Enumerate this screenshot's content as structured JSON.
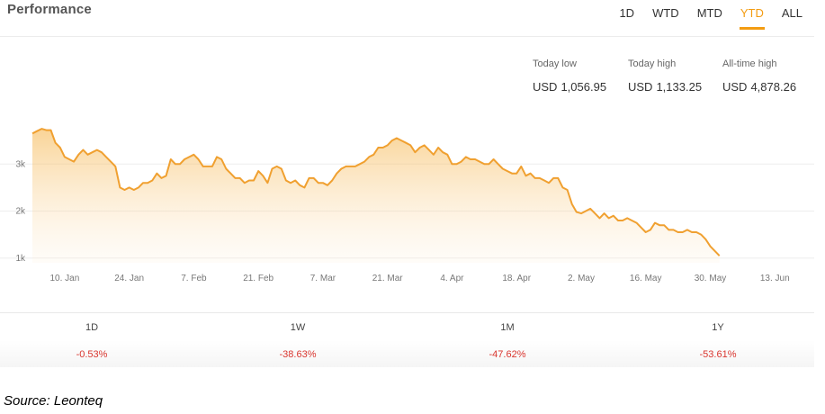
{
  "header": {
    "title": "Performance",
    "tabs": [
      "1D",
      "WTD",
      "MTD",
      "YTD",
      "ALL"
    ],
    "active_tab": "YTD"
  },
  "stats": [
    {
      "label": "Today low",
      "currency": "USD",
      "value": "1,056.95"
    },
    {
      "label": "Today high",
      "currency": "USD",
      "value": "1,133.25"
    },
    {
      "label": "All-time high",
      "currency": "USD",
      "value": "4,878.26"
    }
  ],
  "colors": {
    "accent": "#f39c12",
    "line": "#f0a030",
    "negative": "#d9362f"
  },
  "chart_data": {
    "type": "area",
    "title": "",
    "xlabel": "",
    "ylabel": "",
    "ylim": [
      900,
      4000
    ],
    "yticks": [
      1000,
      2000,
      3000
    ],
    "ytick_labels": [
      "1k",
      "2k",
      "3k"
    ],
    "xticks": [
      {
        "label": "10. Jan",
        "day": 10
      },
      {
        "label": "24. Jan",
        "day": 24
      },
      {
        "label": "7. Feb",
        "day": 38
      },
      {
        "label": "21. Feb",
        "day": 52
      },
      {
        "label": "7. Mar",
        "day": 66
      },
      {
        "label": "21. Mar",
        "day": 80
      },
      {
        "label": "4. Apr",
        "day": 94
      },
      {
        "label": "18. Apr",
        "day": 108
      },
      {
        "label": "2. May",
        "day": 122
      },
      {
        "label": "16. May",
        "day": 136
      },
      {
        "label": "30. May",
        "day": 150
      },
      {
        "label": "13. Jun",
        "day": 164
      }
    ],
    "xlim": [
      3,
      170
    ],
    "grid": true,
    "series": [
      {
        "values": [
          [
            3,
            3650
          ],
          [
            4,
            3700
          ],
          [
            5,
            3750
          ],
          [
            6,
            3720
          ],
          [
            7,
            3720
          ],
          [
            8,
            3450
          ],
          [
            9,
            3350
          ],
          [
            10,
            3150
          ],
          [
            11,
            3100
          ],
          [
            12,
            3050
          ],
          [
            13,
            3200
          ],
          [
            14,
            3300
          ],
          [
            15,
            3200
          ],
          [
            16,
            3250
          ],
          [
            17,
            3300
          ],
          [
            18,
            3250
          ],
          [
            19,
            3150
          ],
          [
            20,
            3050
          ],
          [
            21,
            2950
          ],
          [
            22,
            2500
          ],
          [
            23,
            2450
          ],
          [
            24,
            2500
          ],
          [
            25,
            2450
          ],
          [
            26,
            2500
          ],
          [
            27,
            2600
          ],
          [
            28,
            2600
          ],
          [
            29,
            2650
          ],
          [
            30,
            2800
          ],
          [
            31,
            2700
          ],
          [
            32,
            2750
          ],
          [
            33,
            3100
          ],
          [
            34,
            3000
          ],
          [
            35,
            3000
          ],
          [
            36,
            3100
          ],
          [
            37,
            3150
          ],
          [
            38,
            3200
          ],
          [
            39,
            3100
          ],
          [
            40,
            2950
          ],
          [
            41,
            2950
          ],
          [
            42,
            2950
          ],
          [
            43,
            3150
          ],
          [
            44,
            3100
          ],
          [
            45,
            2900
          ],
          [
            46,
            2800
          ],
          [
            47,
            2700
          ],
          [
            48,
            2700
          ],
          [
            49,
            2600
          ],
          [
            50,
            2650
          ],
          [
            51,
            2650
          ],
          [
            52,
            2850
          ],
          [
            53,
            2750
          ],
          [
            54,
            2600
          ],
          [
            55,
            2900
          ],
          [
            56,
            2950
          ],
          [
            57,
            2900
          ],
          [
            58,
            2650
          ],
          [
            59,
            2600
          ],
          [
            60,
            2650
          ],
          [
            61,
            2550
          ],
          [
            62,
            2500
          ],
          [
            63,
            2700
          ],
          [
            64,
            2700
          ],
          [
            65,
            2600
          ],
          [
            66,
            2600
          ],
          [
            67,
            2550
          ],
          [
            68,
            2650
          ],
          [
            69,
            2800
          ],
          [
            70,
            2900
          ],
          [
            71,
            2950
          ],
          [
            72,
            2950
          ],
          [
            73,
            2950
          ],
          [
            74,
            3000
          ],
          [
            75,
            3050
          ],
          [
            76,
            3150
          ],
          [
            77,
            3200
          ],
          [
            78,
            3350
          ],
          [
            79,
            3350
          ],
          [
            80,
            3400
          ],
          [
            81,
            3500
          ],
          [
            82,
            3550
          ],
          [
            83,
            3500
          ],
          [
            84,
            3450
          ],
          [
            85,
            3400
          ],
          [
            86,
            3250
          ],
          [
            87,
            3350
          ],
          [
            88,
            3400
          ],
          [
            89,
            3300
          ],
          [
            90,
            3200
          ],
          [
            91,
            3350
          ],
          [
            92,
            3250
          ],
          [
            93,
            3200
          ],
          [
            94,
            3000
          ],
          [
            95,
            3000
          ],
          [
            96,
            3050
          ],
          [
            97,
            3150
          ],
          [
            98,
            3100
          ],
          [
            99,
            3100
          ],
          [
            100,
            3050
          ],
          [
            101,
            3000
          ],
          [
            102,
            3000
          ],
          [
            103,
            3100
          ],
          [
            104,
            3000
          ],
          [
            105,
            2900
          ],
          [
            106,
            2850
          ],
          [
            107,
            2800
          ],
          [
            108,
            2800
          ],
          [
            109,
            2950
          ],
          [
            110,
            2750
          ],
          [
            111,
            2800
          ],
          [
            112,
            2700
          ],
          [
            113,
            2700
          ],
          [
            114,
            2650
          ],
          [
            115,
            2600
          ],
          [
            116,
            2700
          ],
          [
            117,
            2700
          ],
          [
            118,
            2500
          ],
          [
            119,
            2450
          ],
          [
            120,
            2150
          ],
          [
            121,
            1980
          ],
          [
            122,
            1950
          ],
          [
            123,
            2000
          ],
          [
            124,
            2050
          ],
          [
            125,
            1950
          ],
          [
            126,
            1850
          ],
          [
            127,
            1950
          ],
          [
            128,
            1850
          ],
          [
            129,
            1900
          ],
          [
            130,
            1800
          ],
          [
            131,
            1800
          ],
          [
            132,
            1850
          ],
          [
            133,
            1800
          ],
          [
            134,
            1750
          ],
          [
            135,
            1650
          ],
          [
            136,
            1550
          ],
          [
            137,
            1600
          ],
          [
            138,
            1750
          ],
          [
            139,
            1700
          ],
          [
            140,
            1700
          ],
          [
            141,
            1600
          ],
          [
            142,
            1600
          ],
          [
            143,
            1550
          ],
          [
            144,
            1550
          ],
          [
            145,
            1600
          ],
          [
            146,
            1550
          ],
          [
            147,
            1550
          ],
          [
            148,
            1500
          ],
          [
            149,
            1400
          ],
          [
            150,
            1250
          ],
          [
            151,
            1150
          ],
          [
            152,
            1050
          ]
        ]
      }
    ]
  },
  "performance": {
    "headers": [
      "1D",
      "1W",
      "1M",
      "1Y"
    ],
    "values": [
      "-0.53%",
      "-38.63%",
      "-47.62%",
      "-53.61%"
    ]
  },
  "source": "Source: Leonteq"
}
